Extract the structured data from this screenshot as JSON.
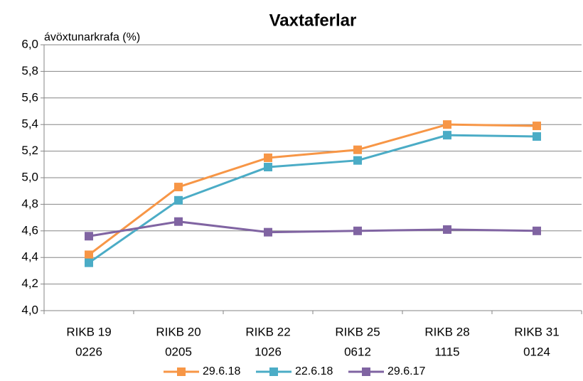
{
  "chart_data": {
    "type": "line",
    "title": "Vaxtaferlar",
    "y_label": "ávöxtunarkrafa (%)",
    "categories": [
      [
        "RIKB 19",
        "0226"
      ],
      [
        "RIKB 20",
        "0205"
      ],
      [
        "RIKB 22",
        "1026"
      ],
      [
        "RIKB 25",
        "0612"
      ],
      [
        "RIKB 28",
        "1115"
      ],
      [
        "RIKB 31",
        "0124"
      ]
    ],
    "series": [
      {
        "name": "29.6.18",
        "color": "#f79646",
        "values": [
          4.42,
          4.93,
          5.15,
          5.21,
          5.4,
          5.39
        ]
      },
      {
        "name": "22.6.18",
        "color": "#4bacc6",
        "values": [
          4.36,
          4.83,
          5.08,
          5.13,
          5.32,
          5.31
        ]
      },
      {
        "name": "29.6.17",
        "color": "#8064a2",
        "values": [
          4.56,
          4.67,
          4.59,
          4.6,
          4.61,
          4.6
        ]
      }
    ],
    "ylim": [
      4.0,
      6.0
    ],
    "yticks": [
      {
        "value": 4.0,
        "label": "4,0"
      },
      {
        "value": 4.2,
        "label": "4,2"
      },
      {
        "value": 4.4,
        "label": "4,4"
      },
      {
        "value": 4.6,
        "label": "4,6"
      },
      {
        "value": 4.8,
        "label": "4,8"
      },
      {
        "value": 5.0,
        "label": "5,0"
      },
      {
        "value": 5.2,
        "label": "5,2"
      },
      {
        "value": 5.4,
        "label": "5,4"
      },
      {
        "value": 5.6,
        "label": "5,6"
      },
      {
        "value": 5.8,
        "label": "5,8"
      },
      {
        "value": 6.0,
        "label": "6,0"
      }
    ],
    "grid": true,
    "legend": "bottom"
  }
}
